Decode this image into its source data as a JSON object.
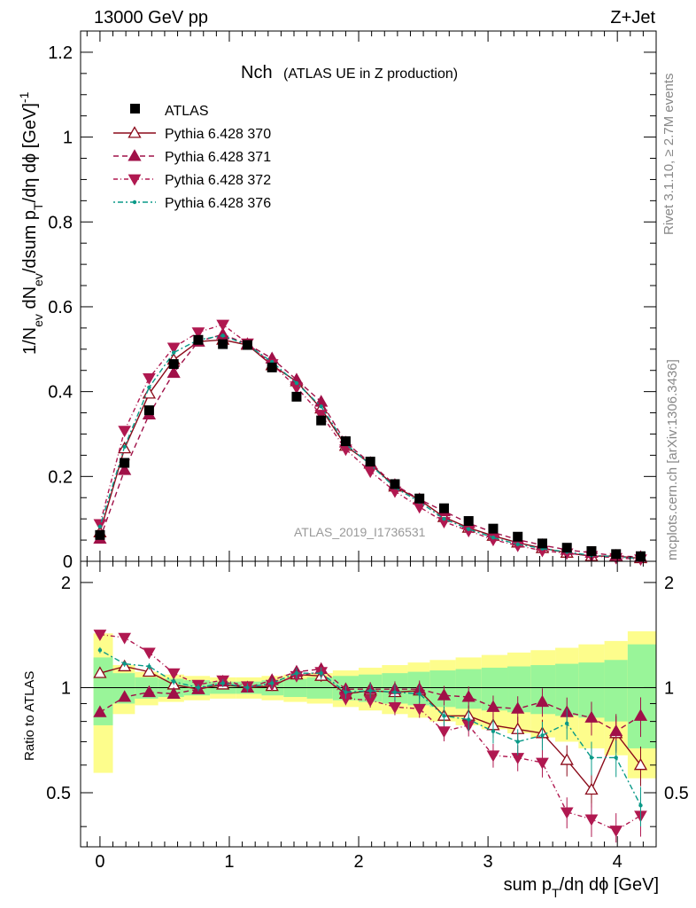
{
  "header": {
    "left": "13000 GeV pp",
    "right": "Z+Jet"
  },
  "side": {
    "rivet": "Rivet 3.1.10, ≥ 2.7M events",
    "mcplots": "mcplots.cern.ch [arXiv:1306.3436]"
  },
  "chart_data": {
    "type": "scatter",
    "title": "Nch",
    "subtitle": "(ATLAS UE in Z production)",
    "analysis_label": "ATLAS_2019_I1736531",
    "xlabel": "sum p_T/dη dϕ [GeV]",
    "ylabel": "1/N_ev dN_ev/dsum p_T/dη dϕ [GeV]^-1",
    "ratio_ylabel": "Ratio to ATLAS",
    "xlim": [
      -0.15,
      4.3
    ],
    "ylim": [
      0,
      1.25
    ],
    "ratio_ylim": [
      0.35,
      2.3
    ],
    "x_ticks": [
      "0",
      "1",
      "2",
      "3",
      "4"
    ],
    "y_ticks": [
      "0",
      "0.2",
      "0.4",
      "0.6",
      "0.8",
      "1",
      "1.2"
    ],
    "ratio_ticks_left": [
      "0.5",
      "1",
      "2"
    ],
    "ratio_ticks_right": [
      "0.5",
      "1",
      "2"
    ],
    "bin_edges": [
      -0.05,
      0.1,
      0.27,
      0.45,
      0.65,
      0.85,
      1.05,
      1.25,
      1.42,
      1.6,
      1.8,
      2.0,
      2.18,
      2.38,
      2.55,
      2.75,
      2.95,
      3.15,
      3.33,
      3.52,
      3.7,
      3.9,
      4.08,
      4.3
    ],
    "x": [
      0.0,
      0.19,
      0.38,
      0.57,
      0.76,
      0.95,
      1.14,
      1.33,
      1.52,
      1.71,
      1.9,
      2.09,
      2.28,
      2.47,
      2.66,
      2.85,
      3.04,
      3.23,
      3.42,
      3.61,
      3.8,
      3.99,
      4.18
    ],
    "data": {
      "name": "ATLAS",
      "values": [
        0.062,
        0.232,
        0.356,
        0.465,
        0.522,
        0.512,
        0.51,
        0.457,
        0.388,
        0.332,
        0.283,
        0.235,
        0.182,
        0.148,
        0.125,
        0.095,
        0.077,
        0.058,
        0.042,
        0.032,
        0.024,
        0.017,
        0.012
      ],
      "band_yellow": [
        0.43,
        0.16,
        0.11,
        0.09,
        0.08,
        0.07,
        0.07,
        0.08,
        0.09,
        0.1,
        0.12,
        0.14,
        0.16,
        0.18,
        0.2,
        0.22,
        0.24,
        0.26,
        0.28,
        0.3,
        0.33,
        0.36,
        0.45
      ],
      "band_green": [
        0.22,
        0.1,
        0.07,
        0.06,
        0.05,
        0.04,
        0.04,
        0.05,
        0.06,
        0.07,
        0.08,
        0.09,
        0.1,
        0.11,
        0.12,
        0.13,
        0.14,
        0.15,
        0.16,
        0.17,
        0.18,
        0.2,
        0.33
      ]
    },
    "series": [
      {
        "name": "Pythia 6.428 370",
        "color": "#8b0a1a",
        "marker": "triangle-up-open",
        "dash": "",
        "values": [
          0.068,
          0.266,
          0.395,
          0.475,
          0.518,
          0.522,
          0.51,
          0.462,
          0.424,
          0.36,
          0.272,
          0.23,
          0.176,
          0.145,
          0.104,
          0.079,
          0.06,
          0.044,
          0.031,
          0.02,
          0.012,
          0.0125,
          0.007
        ],
        "ratio": [
          1.1,
          1.15,
          1.11,
          1.02,
          0.99,
          1.02,
          1.0,
          1.01,
          1.09,
          1.08,
          0.96,
          0.98,
          0.97,
          0.98,
          0.83,
          0.83,
          0.78,
          0.76,
          0.74,
          0.62,
          0.51,
          0.74,
          0.6
        ]
      },
      {
        "name": "Pythia 6.428 371",
        "color": "#a01048",
        "marker": "triangle-up-filled",
        "dash": "6,4",
        "values": [
          0.053,
          0.215,
          0.346,
          0.444,
          0.518,
          0.535,
          0.512,
          0.478,
          0.428,
          0.376,
          0.28,
          0.232,
          0.18,
          0.146,
          0.118,
          0.09,
          0.068,
          0.051,
          0.038,
          0.027,
          0.02,
          0.013,
          0.01
        ],
        "ratio": [
          0.85,
          0.94,
          0.97,
          0.96,
          0.99,
          1.04,
          1.0,
          1.05,
          1.11,
          1.13,
          0.99,
          0.99,
          0.99,
          0.99,
          0.95,
          0.94,
          0.88,
          0.87,
          0.91,
          0.85,
          0.82,
          0.75,
          0.83
        ]
      },
      {
        "name": "Pythia 6.428 372",
        "color": "#b01850",
        "marker": "triangle-down-filled",
        "dash": "5,3,1,3",
        "values": [
          0.088,
          0.308,
          0.432,
          0.504,
          0.54,
          0.558,
          0.514,
          0.465,
          0.41,
          0.346,
          0.264,
          0.212,
          0.165,
          0.128,
          0.093,
          0.072,
          0.051,
          0.037,
          0.025,
          0.019,
          0.013,
          0.008,
          0.005
        ],
        "ratio": [
          1.42,
          1.39,
          1.26,
          1.1,
          1.02,
          1.05,
          1.01,
          1.02,
          1.08,
          1.11,
          0.93,
          0.92,
          0.88,
          0.87,
          0.75,
          0.78,
          0.64,
          0.63,
          0.61,
          0.44,
          0.42,
          0.39,
          0.43
        ]
      },
      {
        "name": "Pythia 6.428 376",
        "color": "#0a9a88",
        "marker": "dot",
        "dash": "2,3,6,3",
        "values": [
          0.082,
          0.27,
          0.41,
          0.492,
          0.522,
          0.532,
          0.51,
          0.47,
          0.42,
          0.365,
          0.276,
          0.228,
          0.174,
          0.14,
          0.1,
          0.076,
          0.056,
          0.04,
          0.03,
          0.022,
          0.014,
          0.011,
          0.006
        ],
        "ratio": [
          1.28,
          1.17,
          1.15,
          1.04,
          1.0,
          1.03,
          1.0,
          1.03,
          1.1,
          1.1,
          0.97,
          0.98,
          0.97,
          0.96,
          0.83,
          0.81,
          0.75,
          0.7,
          0.73,
          0.79,
          0.63,
          0.63,
          0.46
        ]
      }
    ]
  }
}
